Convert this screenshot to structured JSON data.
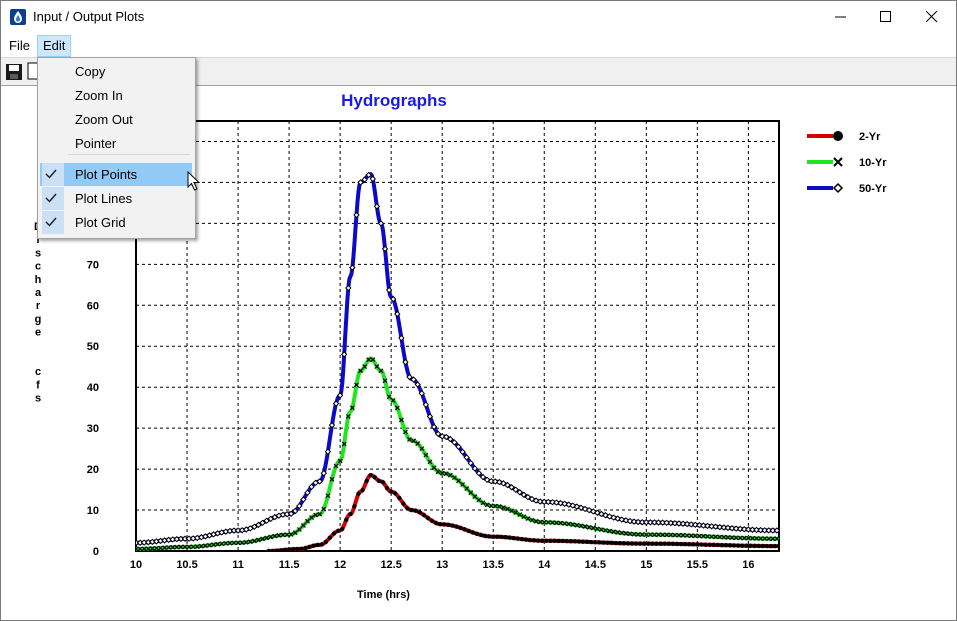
{
  "window": {
    "title": "Input / Output Plots"
  },
  "menubar": {
    "file": "File",
    "edit": "Edit"
  },
  "edit_menu": {
    "items": [
      {
        "label": "Copy",
        "checked": false
      },
      {
        "label": "Zoom In",
        "checked": false
      },
      {
        "label": "Zoom Out",
        "checked": false
      },
      {
        "label": "Pointer",
        "checked": false
      },
      {
        "label": "Plot Points",
        "checked": true,
        "highlighted": true
      },
      {
        "label": "Plot Lines",
        "checked": true
      },
      {
        "label": "Plot Grid",
        "checked": true
      }
    ]
  },
  "colors": {
    "title": "#1a1ae6",
    "red": "#d40000",
    "green": "#1fe61f",
    "blue": "#0a0ac8",
    "highlight": "#91c9f7"
  },
  "chart_data": {
    "type": "line",
    "title": "Hydrographs",
    "xlabel": "Time (hrs)",
    "ylabel": "D i s c h a r g e   c f s",
    "ylabel_chars": [
      "D",
      "i",
      "s",
      "c",
      "h",
      "a",
      "r",
      "g",
      "e",
      "",
      "",
      "c",
      "f",
      "s"
    ],
    "xlim": [
      10,
      16.3
    ],
    "ylim": [
      0,
      105
    ],
    "x_ticks": [
      "10",
      "10.5",
      "11",
      "11.5",
      "12",
      "12.5",
      "13",
      "13.5",
      "14",
      "14.5",
      "15",
      "15.5",
      "16"
    ],
    "y_ticks": [
      "0",
      "10",
      "20",
      "30",
      "40",
      "50",
      "60",
      "70"
    ],
    "grid": true,
    "legend_position": "right",
    "series": [
      {
        "name": "2-Yr",
        "marker": "circle",
        "color": "#d40000",
        "x": [
          11.3,
          11.6,
          11.8,
          12.0,
          12.1,
          12.2,
          12.3,
          12.4,
          12.5,
          12.7,
          13.0,
          13.5,
          14.0,
          15.0,
          16.3
        ],
        "y": [
          0,
          0.5,
          1.5,
          5,
          9,
          14.5,
          18.5,
          17,
          14.5,
          10,
          6.5,
          3.5,
          2.5,
          1.8,
          1.2
        ]
      },
      {
        "name": "10-Yr",
        "marker": "x",
        "color": "#1fe61f",
        "x": [
          10.0,
          10.5,
          11.0,
          11.5,
          11.8,
          12.0,
          12.1,
          12.2,
          12.3,
          12.4,
          12.5,
          12.7,
          13.0,
          13.5,
          14.0,
          15.0,
          16.3
        ],
        "y": [
          0.5,
          1,
          2,
          4,
          9,
          22,
          34,
          44,
          47,
          44,
          37,
          27,
          19,
          11,
          7,
          4,
          3
        ]
      },
      {
        "name": "50-Yr",
        "marker": "diamond",
        "color": "#0a0ac8",
        "x": [
          10.0,
          10.5,
          11.0,
          11.5,
          11.8,
          12.0,
          12.1,
          12.2,
          12.3,
          12.4,
          12.5,
          12.7,
          13.0,
          13.5,
          14.0,
          15.0,
          16.3
        ],
        "y": [
          2,
          3,
          5,
          9,
          17,
          38,
          67,
          90,
          92,
          80,
          62,
          42,
          28,
          17,
          12,
          7,
          5
        ]
      }
    ]
  }
}
